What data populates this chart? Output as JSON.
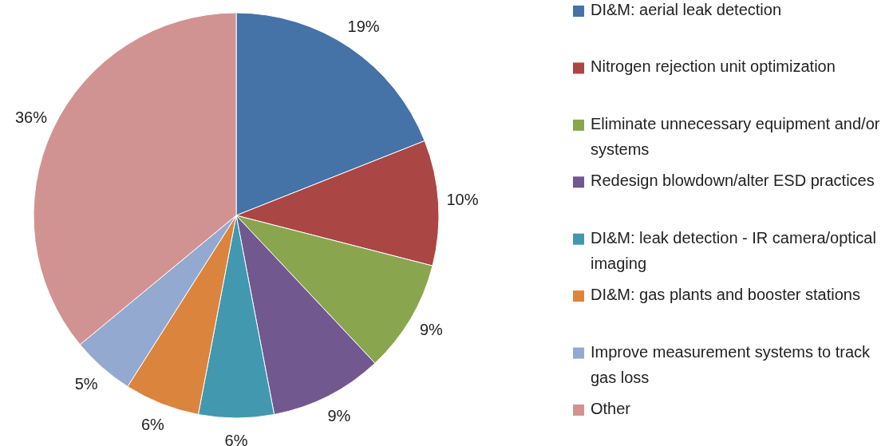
{
  "chart_data": {
    "type": "pie",
    "categories": [
      "DI&M: aerial leak detection",
      "Nitrogen rejection unit optimization",
      "Eliminate unnecessary equipment and/or systems",
      "Redesign blowdown/alter ESD practices",
      "DI&M: leak detection - IR camera/optical imaging",
      "DI&M: gas plants and booster stations",
      "Improve measurement systems to track gas loss",
      "Other"
    ],
    "values": [
      19,
      10,
      9,
      9,
      6,
      6,
      5,
      36
    ],
    "colors": [
      "#4572a7",
      "#aa4643",
      "#89a54e",
      "#71588f",
      "#4198af",
      "#db843d",
      "#93a9cf",
      "#d19392"
    ],
    "value_labels": [
      "19%",
      "10%",
      "9%",
      "9%",
      "6%",
      "6%",
      "5%",
      "36%"
    ],
    "legend": "right"
  }
}
